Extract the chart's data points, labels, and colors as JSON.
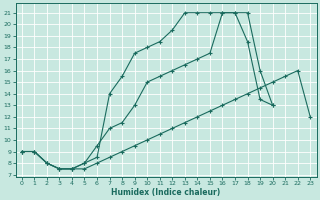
{
  "xlabel": "Humidex (Indice chaleur)",
  "background_color": "#c8e8e0",
  "grid_color": "#b0d8d0",
  "line_color": "#1a6b5e",
  "xlim": [
    -0.5,
    23.5
  ],
  "ylim": [
    6.8,
    21.8
  ],
  "xticks": [
    0,
    1,
    2,
    3,
    4,
    5,
    6,
    7,
    8,
    9,
    10,
    11,
    12,
    13,
    14,
    15,
    16,
    17,
    18,
    19,
    20,
    21,
    22,
    23
  ],
  "yticks": [
    7,
    8,
    9,
    10,
    11,
    12,
    13,
    14,
    15,
    16,
    17,
    18,
    19,
    20,
    21
  ],
  "line1_x": [
    0,
    1,
    2,
    3,
    4,
    5,
    6,
    7,
    8,
    9,
    10,
    11,
    12,
    13,
    14,
    15,
    16,
    17,
    18,
    19,
    20,
    21,
    22,
    23
  ],
  "line1_y": [
    9,
    9,
    8,
    7.5,
    7.5,
    7.5,
    8.0,
    8.5,
    9.0,
    9.5,
    10.0,
    10.5,
    11.0,
    11.5,
    12.0,
    12.5,
    13.0,
    13.5,
    14.0,
    14.5,
    15.0,
    15.5,
    16.0,
    12.0
  ],
  "line2_x": [
    0,
    1,
    2,
    3,
    4,
    5,
    6,
    7,
    8,
    9,
    10,
    11,
    12,
    13,
    14,
    15,
    16,
    17,
    18,
    19,
    20
  ],
  "line2_y": [
    9,
    9,
    8,
    7.5,
    7.5,
    8.0,
    9.5,
    11.0,
    11.5,
    13.0,
    15.0,
    15.5,
    16.0,
    16.5,
    17.0,
    17.5,
    21.0,
    21.0,
    21.0,
    16.0,
    13.0
  ],
  "line3_x": [
    0,
    1,
    2,
    3,
    4,
    5,
    6,
    7,
    8,
    9,
    10,
    11,
    12,
    13,
    14,
    15,
    16,
    17,
    18,
    19,
    20
  ],
  "line3_y": [
    9,
    9,
    8,
    7.5,
    7.5,
    8.0,
    8.5,
    14.0,
    15.5,
    17.5,
    18.0,
    18.5,
    19.5,
    21.0,
    21.0,
    21.0,
    21.0,
    21.0,
    18.5,
    13.5,
    13.0
  ]
}
